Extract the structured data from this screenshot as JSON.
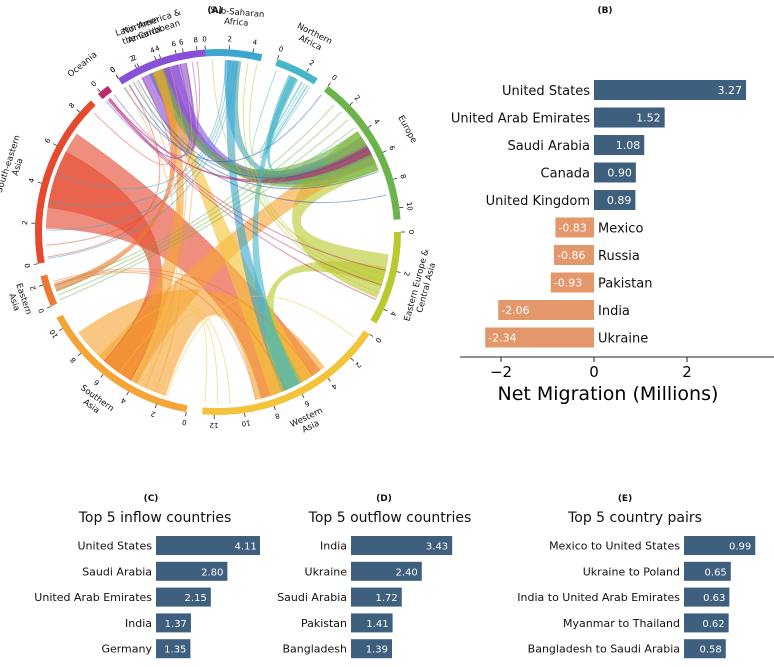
{
  "panels": {
    "A": "(A)",
    "B": "(B)",
    "C": "(C)",
    "D": "(D)",
    "E": "(E)"
  },
  "chord": {
    "regions": [
      {
        "name": "Northern\nAmerica",
        "color": "#1f5fb5",
        "ticks": [
          "0",
          "2",
          "4",
          "6"
        ]
      },
      {
        "name": "Sub-Saharan\nAfrica",
        "color": "#3ba7cf",
        "ticks": [
          "0",
          "2",
          "4"
        ]
      },
      {
        "name": "Northern\nAfrica",
        "color": "#46b7c9",
        "ticks": [
          "0",
          "2"
        ]
      },
      {
        "name": "Europe",
        "color": "#6bb34a",
        "ticks": [
          "0",
          "2",
          "4",
          "6",
          "8",
          "10"
        ]
      },
      {
        "name": "Eastern Europe &\nCentral Asia",
        "color": "#b9c92e",
        "ticks": [
          "0",
          "2",
          "4"
        ]
      },
      {
        "name": "Western\nAsia",
        "color": "#f3c43a",
        "ticks": [
          "0",
          "2",
          "4",
          "6",
          "8",
          "10",
          "12"
        ]
      },
      {
        "name": "Southern\nAsia",
        "color": "#f5a436",
        "ticks": [
          "0",
          "2",
          "4",
          "6",
          "8",
          "10"
        ]
      },
      {
        "name": "Eastern\nAsia",
        "color": "#ec7a34",
        "ticks": [
          "0",
          "2"
        ]
      },
      {
        "name": "South-eastern\nAsia",
        "color": "#e5492e",
        "ticks": [
          "0",
          "2",
          "4",
          "6",
          "8"
        ]
      },
      {
        "name": "Oceania",
        "color": "#c0286a",
        "ticks": [
          "0"
        ]
      },
      {
        "name": "Latin America &\nthe Caribbean",
        "color": "#8a4fd8",
        "ticks": [
          "0",
          "2",
          "4",
          "6",
          "8"
        ]
      }
    ]
  },
  "chart_data": [
    {
      "type": "bar",
      "orientation": "horizontal",
      "categories": [
        "United States",
        "United Arab Emirates",
        "Saudi Arabia",
        "Canada",
        "United Kingdom",
        "Mexico",
        "Russia",
        "Pakistan",
        "India",
        "Ukraine"
      ],
      "values": [
        3.27,
        1.52,
        1.08,
        0.9,
        0.89,
        -0.83,
        -0.86,
        -0.93,
        -2.06,
        -2.34
      ],
      "value_labels": [
        "3.27",
        "1.52",
        "1.08",
        "0.90",
        "0.89",
        "-0.83",
        "-0.86",
        "-0.93",
        "-2.06",
        "-2.34"
      ],
      "xlabel": "Net Migration (Millions)",
      "xticks": [
        "−2",
        "0",
        "2"
      ],
      "xlim": [
        -2.6,
        3.4
      ],
      "colors": {
        "positive": "#3f5f7e",
        "negative": "#e3976a"
      }
    },
    {
      "type": "bar",
      "orientation": "horizontal",
      "title": "Top 5 inflow countries",
      "categories": [
        "United States",
        "Saudi Arabia",
        "United Arab Emirates",
        "India",
        "Germany"
      ],
      "values": [
        4.11,
        2.8,
        2.15,
        1.37,
        1.35
      ],
      "value_labels": [
        "4.11",
        "2.80",
        "2.15",
        "1.37",
        "1.35"
      ]
    },
    {
      "type": "bar",
      "orientation": "horizontal",
      "title": "Top 5 outflow countries",
      "categories": [
        "India",
        "Ukraine",
        "Saudi Arabia",
        "Pakistan",
        "Bangladesh"
      ],
      "values": [
        3.43,
        2.4,
        1.72,
        1.41,
        1.39
      ],
      "value_labels": [
        "3.43",
        "2.40",
        "1.72",
        "1.41",
        "1.39"
      ]
    },
    {
      "type": "bar",
      "orientation": "horizontal",
      "title": "Top 5 country pairs",
      "categories": [
        "Mexico to United States",
        "Ukraine to Poland",
        "India to United Arab Emirates",
        "Myanmar to Thailand",
        "Bangladesh to Saudi Arabia"
      ],
      "values": [
        0.99,
        0.65,
        0.63,
        0.62,
        0.58
      ],
      "value_labels": [
        "0.99",
        "0.65",
        "0.63",
        "0.62",
        "0.58"
      ]
    }
  ],
  "bar_color": "#3f5f7e"
}
